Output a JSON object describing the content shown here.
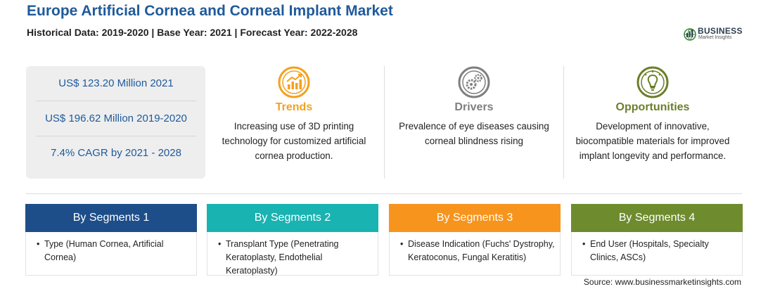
{
  "header": {
    "title": "Europe Artificial Cornea and Corneal Implant Market",
    "subtitle": "Historical Data: 2019-2020 | Base Year: 2021 | Forecast Year: 2022-2028"
  },
  "logo": {
    "main": "BUSINESS",
    "sub": "Market Insights"
  },
  "stats": [
    "US$ 123.20 Million 2021",
    "US$ 196.62 Million 2019-2020",
    "7.4% CAGR by 2021 - 2028"
  ],
  "drivers": {
    "trends": {
      "title": "Trends",
      "text": "Increasing use of 3D printing technology for customized artificial cornea production.",
      "color": "#f4a11e",
      "icon": "chart-growth-icon"
    },
    "drivers": {
      "title": "Drivers",
      "text": "Prevalence of eye diseases causing corneal blindness rising",
      "color": "#7f7f7f",
      "icon": "gears-icon"
    },
    "opportunities": {
      "title": "Opportunities",
      "text": "Development of innovative, biocompatible materials for improved implant longevity and performance.",
      "color": "#6b7f2a",
      "icon": "lightbulb-icon"
    }
  },
  "segments": [
    {
      "title": "By Segments 1",
      "color": "#1d4e89",
      "item": "Type (Human Cornea, Artificial Cornea)"
    },
    {
      "title": "By Segments 2",
      "color": "#19b3b1",
      "item": "Transplant Type (Penetrating Keratoplasty, Endothelial Keratoplasty)"
    },
    {
      "title": "By Segments 3",
      "color": "#f7941d",
      "item": "Disease Indication (Fuchs' Dystrophy, Keratoconus, Fungal Keratitis)"
    },
    {
      "title": "By Segments 4",
      "color": "#6e8b2e",
      "item": "End User (Hospitals, Specialty Clinics, ASCs)"
    }
  ],
  "source": "Source: www.businessmarketinsights.com"
}
